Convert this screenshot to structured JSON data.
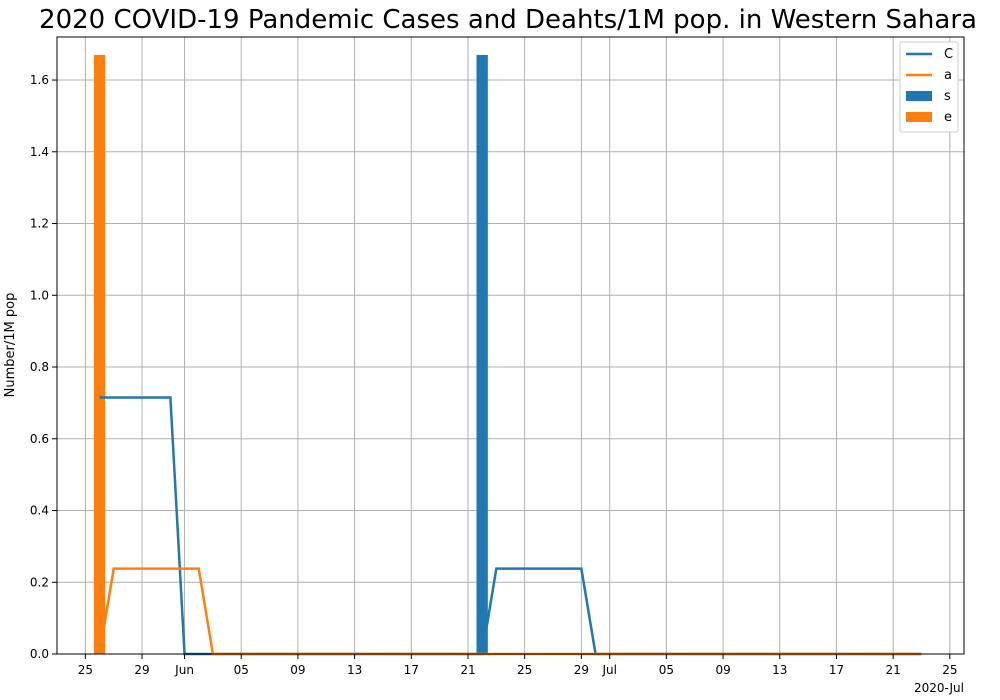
{
  "chart_data": {
    "type": "line",
    "title": "2020 COVID-19 Pandemic Cases and Deahts/1M pop. in Western Sahara",
    "ylabel": "Number/1M pop",
    "xlabel": "",
    "x_offset_label": "2020-Jul",
    "ylim": [
      0,
      1.72
    ],
    "xlim": [
      "2020-05-23",
      "2020-07-26"
    ],
    "grid": true,
    "legend_position": "top-right",
    "x_ticks": [
      {
        "date": "2020-05-25",
        "label": "25"
      },
      {
        "date": "2020-05-29",
        "label": "29"
      },
      {
        "date": "2020-06-01",
        "label": "Jun"
      },
      {
        "date": "2020-06-05",
        "label": "05"
      },
      {
        "date": "2020-06-09",
        "label": "09"
      },
      {
        "date": "2020-06-13",
        "label": "13"
      },
      {
        "date": "2020-06-17",
        "label": "17"
      },
      {
        "date": "2020-06-21",
        "label": "21"
      },
      {
        "date": "2020-06-25",
        "label": "25"
      },
      {
        "date": "2020-06-29",
        "label": "29"
      },
      {
        "date": "2020-07-01",
        "label": "Jul"
      },
      {
        "date": "2020-07-05",
        "label": "05"
      },
      {
        "date": "2020-07-09",
        "label": "09"
      },
      {
        "date": "2020-07-13",
        "label": "13"
      },
      {
        "date": "2020-07-17",
        "label": "17"
      },
      {
        "date": "2020-07-21",
        "label": "21"
      },
      {
        "date": "2020-07-25",
        "label": "25"
      }
    ],
    "y_ticks": [
      {
        "value": 0.0,
        "label": "0.0"
      },
      {
        "value": 0.2,
        "label": "0.2"
      },
      {
        "value": 0.4,
        "label": "0.4"
      },
      {
        "value": 0.6,
        "label": "0.6"
      },
      {
        "value": 0.8,
        "label": "0.8"
      },
      {
        "value": 1.0,
        "label": "1.0"
      },
      {
        "value": 1.2,
        "label": "1.2"
      },
      {
        "value": 1.4,
        "label": "1.4"
      },
      {
        "value": 1.6,
        "label": "1.6"
      }
    ],
    "series": [
      {
        "name": "C",
        "kind": "line",
        "color": "#1f77b4",
        "points": [
          {
            "x": "2020-05-26",
            "y": 0.715
          },
          {
            "x": "2020-05-31",
            "y": 0.715
          },
          {
            "x": "2020-06-01",
            "y": 0.0
          },
          {
            "x": "2020-06-22",
            "y": 0.0
          },
          {
            "x": "2020-06-23",
            "y": 0.238
          },
          {
            "x": "2020-06-29",
            "y": 0.238
          },
          {
            "x": "2020-06-30",
            "y": 0.0
          },
          {
            "x": "2020-07-23",
            "y": 0.0
          }
        ]
      },
      {
        "name": "a",
        "kind": "line",
        "color": "#ff7f0e",
        "points": [
          {
            "x": "2020-05-26",
            "y": 0.0
          },
          {
            "x": "2020-05-27",
            "y": 0.238
          },
          {
            "x": "2020-06-02",
            "y": 0.238
          },
          {
            "x": "2020-06-03",
            "y": 0.0
          },
          {
            "x": "2020-07-23",
            "y": 0.0
          }
        ]
      },
      {
        "name": "s",
        "kind": "bar",
        "color": "#1f77b4",
        "bars": [
          {
            "x": "2020-06-22",
            "y": 1.67
          }
        ]
      },
      {
        "name": "e",
        "kind": "bar",
        "color": "#ff7f0e",
        "bars": [
          {
            "x": "2020-05-26",
            "y": 1.67
          }
        ]
      }
    ]
  }
}
